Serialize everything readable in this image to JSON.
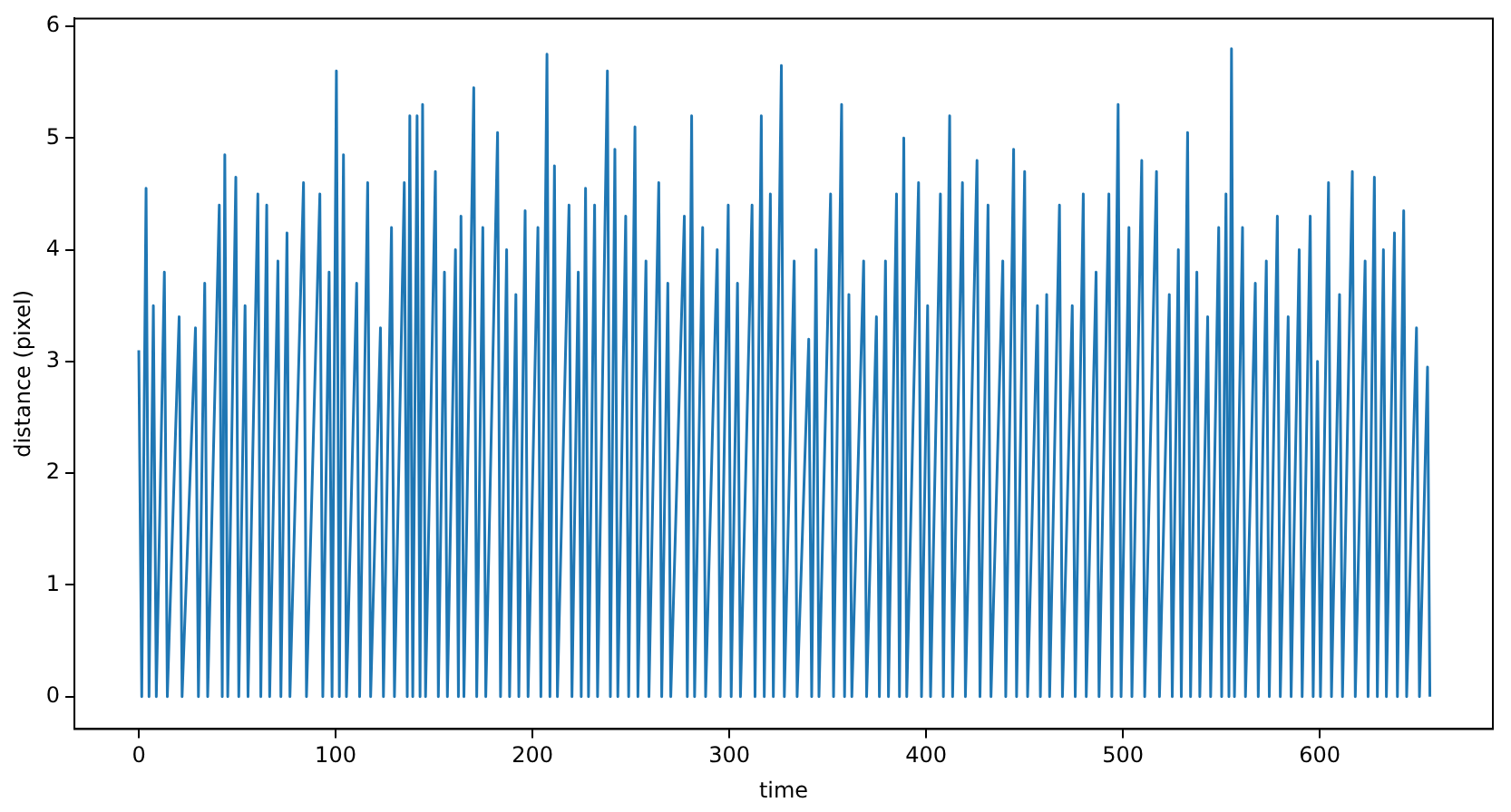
{
  "chart_data": {
    "type": "line",
    "xlabel": "time",
    "ylabel": "distance (pixel)",
    "xlim": [
      -32.7,
      688
    ],
    "ylim": [
      -0.29,
      6.07
    ],
    "xticks": [
      0,
      100,
      200,
      300,
      400,
      500,
      600
    ],
    "yticks": [
      0,
      1,
      2,
      3,
      4,
      5,
      6
    ],
    "grid": false,
    "legend": false,
    "marker": "none",
    "line_style": "solid",
    "series": [
      {
        "color": "#1f77b4",
        "x": [
          0,
          1.5,
          3.7,
          5.2,
          7.4,
          8.9,
          13,
          14.5,
          20.5,
          22,
          28.8,
          30.3,
          33.5,
          35,
          40.9,
          42.4,
          43.7,
          45.2,
          49.3,
          50.8,
          54,
          55.5,
          60.5,
          62,
          65,
          66.5,
          70.7,
          72.2,
          75.3,
          76.8,
          83.7,
          85.2,
          92,
          93.5,
          96.7,
          98.2,
          100.4,
          101.9,
          104,
          105.5,
          110.7,
          112.2,
          116.3,
          117.8,
          122.8,
          124.3,
          128.4,
          129.9,
          134.9,
          136.4,
          137.7,
          139.2,
          141.4,
          142.9,
          144.2,
          145.7,
          150.7,
          152.2,
          155.3,
          156.8,
          160.9,
          162.4,
          163.7,
          165.2,
          170.2,
          171.7,
          174.8,
          176.3,
          182.3,
          183.8,
          186.9,
          188.4,
          191.6,
          193.1,
          196.3,
          197.8,
          202.8,
          204.3,
          207.4,
          208.9,
          211.2,
          212.7,
          218.6,
          220.1,
          223.3,
          224.8,
          227,
          228.5,
          231.6,
          233.1,
          238.1,
          239.6,
          241.9,
          243.4,
          247.4,
          248.9,
          252.1,
          253.6,
          257.7,
          259.2,
          264.2,
          265.7,
          268.8,
          270.3,
          277.2,
          278.7,
          280.9,
          282.4,
          286.5,
          288,
          293.9,
          295.4,
          299.5,
          301,
          304.2,
          305.7,
          311.6,
          313.1,
          316.3,
          317.8,
          320.9,
          322.4,
          326.5,
          328,
          333,
          334.5,
          340.4,
          341.9,
          344.1,
          345.6,
          351.5,
          353,
          357.1,
          358.6,
          360.8,
          362.3,
          368.3,
          369.8,
          374.8,
          376.3,
          379.4,
          380.9,
          385,
          386.5,
          388.7,
          390.2,
          396.2,
          397.7,
          400.8,
          402.3,
          407.3,
          408.8,
          412,
          413.5,
          418.5,
          420,
          425.9,
          427.4,
          431.5,
          433,
          439,
          440.5,
          444.5,
          446,
          450.1,
          451.6,
          456.6,
          458.1,
          461.3,
          462.8,
          467.8,
          469.3,
          474.3,
          475.8,
          479.9,
          481.4,
          486.4,
          487.9,
          492.9,
          494.4,
          497.6,
          499.1,
          503.1,
          504.6,
          509.6,
          511.1,
          517.1,
          518.6,
          523.6,
          525.1,
          528.2,
          529.7,
          532.9,
          534.4,
          537.6,
          539.1,
          543.1,
          544.6,
          548.7,
          550.2,
          552.4,
          553.9,
          555.2,
          556.7,
          560.8,
          562.3,
          567.3,
          568.8,
          572.9,
          574.4,
          578.5,
          580,
          584,
          585.5,
          589.6,
          591.1,
          595.2,
          596.7,
          598.9,
          600.4,
          604.5,
          606,
          610.1,
          611.6,
          616.6,
          618.1,
          623.1,
          624.6,
          627.8,
          629.3,
          632.4,
          633.9,
          638,
          639.5,
          642.7,
          644.2,
          649.2,
          650.7,
          654.8,
          656
        ],
        "values": [
          3.1,
          0,
          4.55,
          0,
          3.5,
          0,
          3.8,
          0,
          3.4,
          0,
          3.3,
          0,
          3.7,
          0,
          4.4,
          0,
          4.85,
          0,
          4.65,
          0,
          3.5,
          0,
          4.5,
          0,
          4.4,
          0,
          3.9,
          0,
          4.15,
          0,
          4.6,
          0,
          4.5,
          0,
          3.8,
          0,
          5.6,
          0,
          4.85,
          0,
          3.7,
          0,
          4.6,
          0,
          3.3,
          0,
          4.2,
          0,
          4.6,
          0,
          5.2,
          0,
          5.2,
          0,
          5.3,
          0,
          4.7,
          0,
          3.8,
          0,
          4.0,
          0,
          4.3,
          0,
          5.45,
          0,
          4.2,
          0,
          5.05,
          0,
          4.0,
          0,
          3.6,
          0,
          4.35,
          0,
          4.2,
          0,
          5.75,
          0,
          4.75,
          0,
          4.4,
          0,
          3.8,
          0,
          4.55,
          0,
          4.4,
          0,
          5.6,
          0,
          4.9,
          0,
          4.3,
          0,
          5.1,
          0,
          3.9,
          0,
          4.6,
          0,
          3.7,
          0,
          4.3,
          0,
          5.2,
          0,
          4.2,
          0,
          4.0,
          0,
          4.4,
          0,
          3.7,
          0,
          4.4,
          0,
          5.2,
          0,
          4.5,
          0,
          5.65,
          0,
          3.9,
          0,
          3.2,
          0,
          4.0,
          0,
          4.5,
          0,
          5.3,
          0,
          3.6,
          0,
          3.9,
          0,
          3.4,
          0,
          3.9,
          0,
          4.5,
          0,
          5.0,
          0,
          4.6,
          0,
          3.5,
          0,
          4.5,
          0,
          5.2,
          0,
          4.6,
          0,
          4.8,
          0,
          4.4,
          0,
          3.9,
          0,
          4.9,
          0,
          4.7,
          0,
          3.5,
          0,
          3.6,
          0,
          4.4,
          0,
          3.5,
          0,
          4.5,
          0,
          3.8,
          0,
          4.5,
          0,
          5.3,
          0,
          4.2,
          0,
          4.8,
          0,
          4.7,
          0,
          3.6,
          0,
          4.0,
          0,
          5.05,
          0,
          3.8,
          0,
          3.4,
          0,
          4.2,
          0,
          4.5,
          0,
          5.8,
          0,
          4.2,
          0,
          3.7,
          0,
          3.9,
          0,
          4.3,
          0,
          3.4,
          0,
          4.0,
          0,
          4.3,
          0,
          3.0,
          0,
          4.6,
          0,
          3.6,
          0,
          4.7,
          0,
          3.9,
          0,
          4.65,
          0,
          4.0,
          0,
          4.15,
          0,
          4.35,
          0,
          3.3,
          0,
          2.95,
          0
        ]
      }
    ]
  }
}
